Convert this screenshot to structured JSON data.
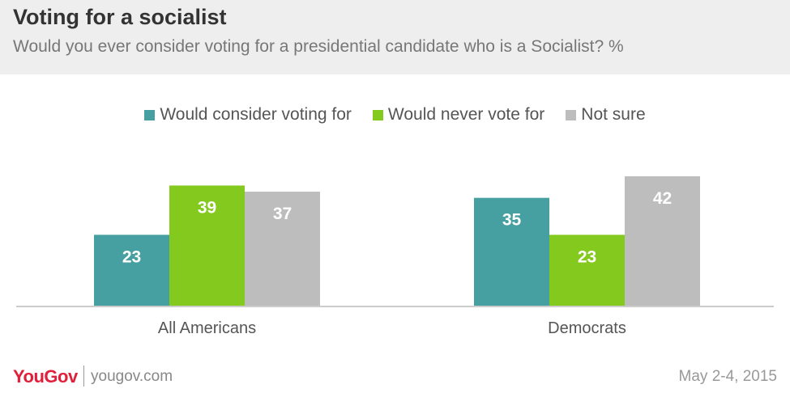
{
  "header": {
    "title": "Voting for a socialist",
    "subtitle": "Would you ever consider voting for a presidential candidate who is a Socialist? %"
  },
  "footer": {
    "logo": "YouGov",
    "site": "yougov.com",
    "date": "May 2-4, 2015"
  },
  "chart_data": {
    "type": "bar",
    "title": "Voting for a socialist",
    "subtitle": "Would you ever consider voting for a presidential candidate who is a Socialist? %",
    "categories": [
      "All Americans",
      "Democrats"
    ],
    "series": [
      {
        "name": "Would consider voting for",
        "color": "#469fa0",
        "values": [
          23,
          35
        ]
      },
      {
        "name": "Would never vote for",
        "color": "#84c91e",
        "values": [
          39,
          23
        ]
      },
      {
        "name": "Not sure",
        "color": "#bdbdbd",
        "values": [
          37,
          42
        ]
      }
    ],
    "ylim": [
      0,
      42
    ],
    "legend": "top-center",
    "grid": false,
    "data_labels": true
  }
}
